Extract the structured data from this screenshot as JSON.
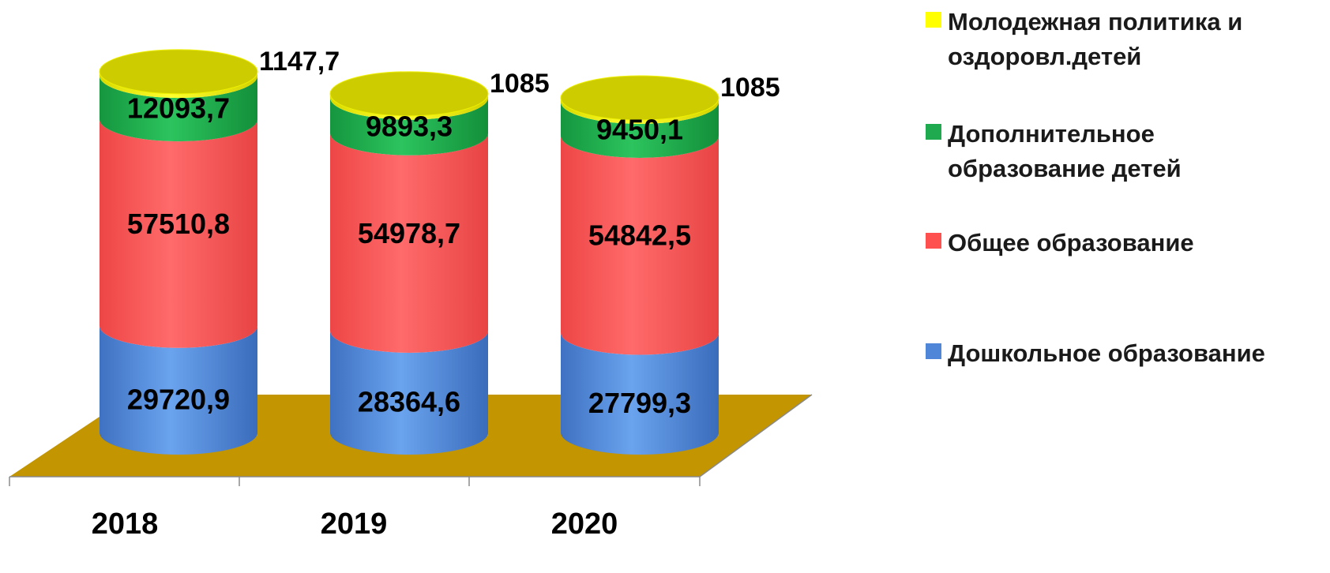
{
  "chart_data": {
    "type": "bar",
    "stacked": true,
    "categories": [
      "2018",
      "2019",
      "2020"
    ],
    "series": [
      {
        "name": "Дошкольное образование",
        "color": "#4f86d8",
        "values": [
          29720.9,
          28364.6,
          27799.3
        ],
        "labels": [
          "29720,9",
          "28364,6",
          "27799,3"
        ]
      },
      {
        "name": "Общее образование",
        "color": "#ff5050",
        "values": [
          57510.8,
          54978.7,
          54842.5
        ],
        "labels": [
          "57510,8",
          "54978,7",
          "54842,5"
        ]
      },
      {
        "name": "Дополнительное образование детей",
        "color": "#1faa4f",
        "values": [
          12093.7,
          9893.3,
          9450.1
        ],
        "labels": [
          "12093,7",
          "9893,3",
          "9450,1"
        ]
      },
      {
        "name": "Молодежная политика и оздоровл.детей",
        "color": "#e8e800",
        "values": [
          1147.7,
          1085,
          1085
        ],
        "labels": [
          "1147,7",
          "1085",
          "1085"
        ]
      }
    ],
    "legend_position": "right",
    "floor_color": "#c39500",
    "style": "3d-cylinder"
  }
}
